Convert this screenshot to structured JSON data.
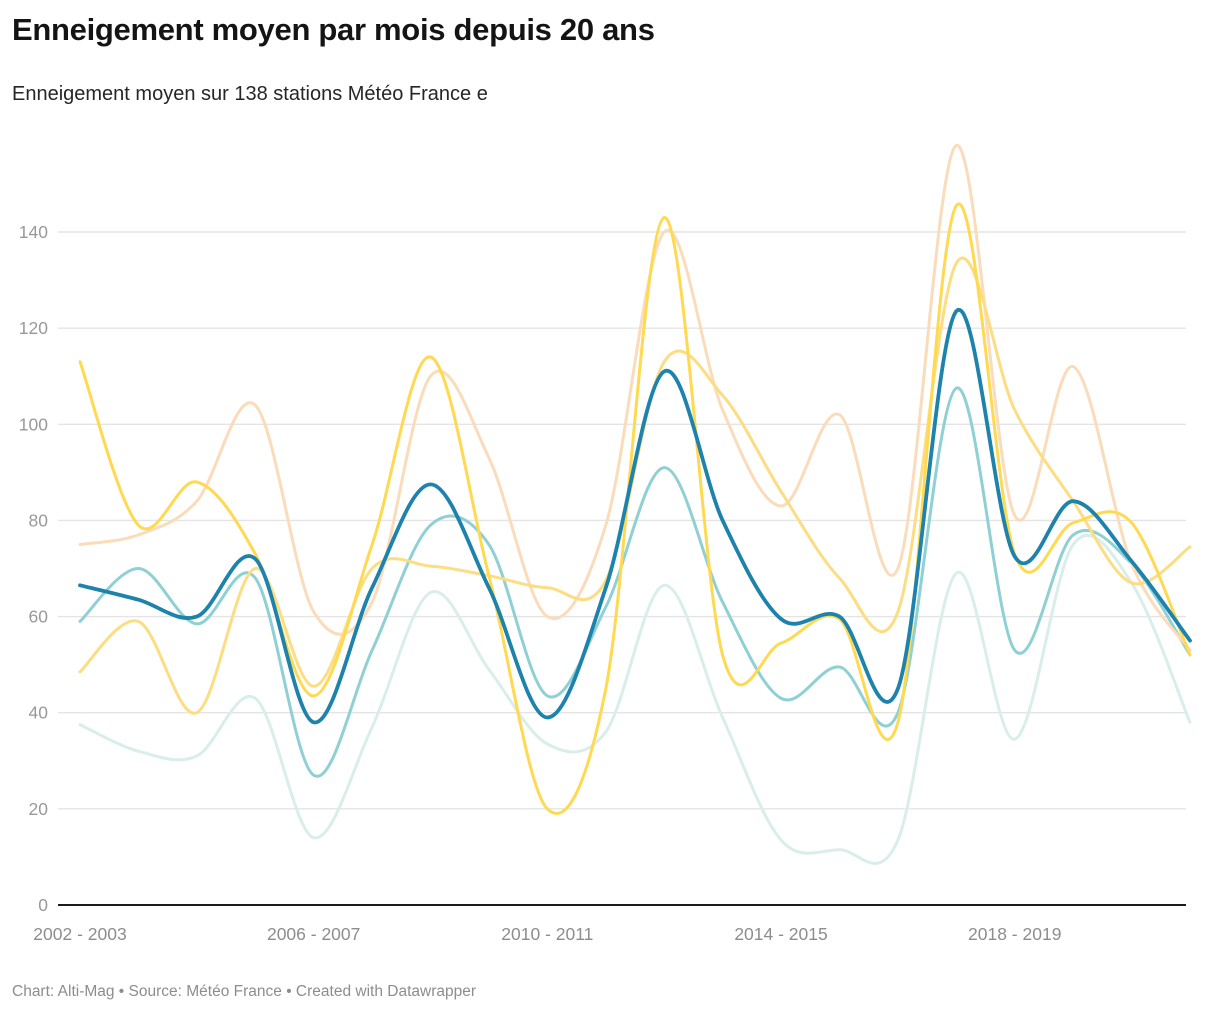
{
  "header": {
    "title": "Enneigement moyen par mois depuis 20 ans",
    "subtitle": "Enneigement moyen sur 138 stations Météo France e"
  },
  "footer": {
    "text": "Chart: Alti-Mag • Source: Météo France • Created with Datawrapper"
  },
  "chart_data": {
    "type": "line",
    "title": "Enneigement moyen par mois depuis 20 ans",
    "n_points": 20,
    "x_range_note": "20 winter seasons, 2002 - 2003 through 2021 - 2022, one point per season",
    "x_tick_labels": [
      {
        "index": 0,
        "label": "2002 - 2003"
      },
      {
        "index": 4,
        "label": "2006 - 2007"
      },
      {
        "index": 8,
        "label": "2010 - 2011"
      },
      {
        "index": 12,
        "label": "2014 - 2015"
      },
      {
        "index": 16,
        "label": "2018 - 2019"
      }
    ],
    "y_ticks": [
      0,
      20,
      40,
      60,
      80,
      100,
      120,
      140
    ],
    "ylim": [
      0,
      160
    ],
    "grid": true,
    "legend": false,
    "series": [
      {
        "name": "mint",
        "color": "#d9eeea",
        "width": 3,
        "values": [
          37.5,
          32,
          31,
          43,
          14,
          37,
          65,
          49,
          33.5,
          36,
          66.5,
          39,
          13.5,
          11.5,
          13.5,
          69,
          34.5,
          75,
          67,
          38
        ]
      },
      {
        "name": "teal",
        "color": "#8fd0d4",
        "width": 3,
        "values": [
          59,
          70,
          58.5,
          68,
          27,
          53,
          79,
          75,
          43.5,
          62,
          91,
          63,
          43,
          49.5,
          40,
          107.5,
          53,
          77,
          71,
          52
        ]
      },
      {
        "name": "peach",
        "color": "#fadcba",
        "width": 3,
        "values": [
          75,
          77,
          84,
          104,
          61,
          63,
          110,
          93,
          60,
          79,
          140,
          103,
          83,
          102,
          70,
          158,
          81,
          112,
          71,
          53
        ]
      },
      {
        "name": "pale-yellow",
        "color": "#fcdd82",
        "width": 3,
        "values": [
          48.5,
          59,
          40,
          70,
          45.5,
          70,
          70.5,
          68.5,
          66,
          67.5,
          113,
          106,
          86,
          68,
          61,
          133.5,
          103,
          84,
          67,
          74.5
        ]
      },
      {
        "name": "bright-yellow",
        "color": "#ffd94f",
        "width": 3,
        "values": [
          113,
          79,
          88,
          73,
          43.5,
          75,
          114,
          68.5,
          20,
          45,
          143,
          52,
          54.5,
          59.5,
          38,
          145.5,
          73,
          79.5,
          79.5,
          52
        ]
      },
      {
        "name": "dark-blue",
        "color": "#1d83ad",
        "width": 3.8,
        "values": [
          66.5,
          63.5,
          60,
          72,
          38,
          66,
          87.5,
          66,
          39,
          66,
          111,
          80,
          59.5,
          60,
          45,
          123.5,
          72.5,
          84,
          71.5,
          55
        ]
      }
    ],
    "axis_colors": {
      "grid": "#e4e4e4",
      "baseline": "#1c1c1c",
      "tick_text": "#8d8d8d"
    }
  }
}
